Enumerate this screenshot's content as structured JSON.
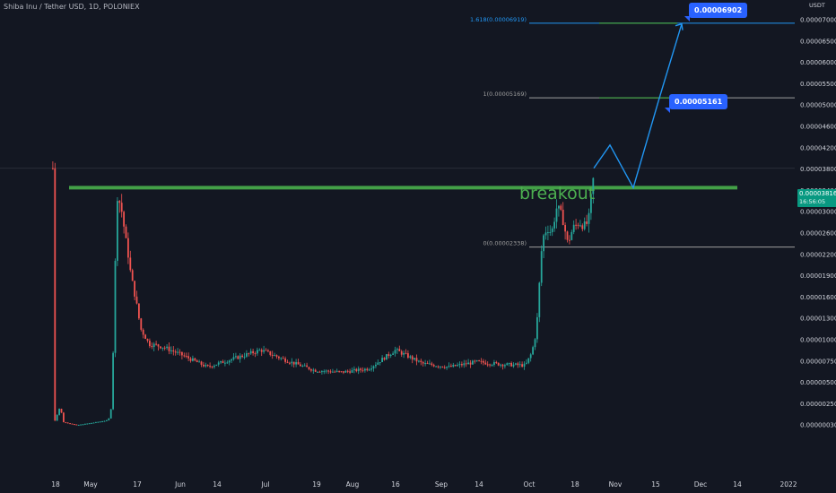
{
  "header": {
    "title": "Shiba Inu / Tether USD, 1D, POLONIEX",
    "unit": "USDT"
  },
  "price_badge": {
    "price": "0.00003816",
    "countdown": "16:56:05"
  },
  "annotations": {
    "breakout_label": "breakout",
    "target_1": "0.00005161",
    "target_2": "0.00006902"
  },
  "colors": {
    "background": "#131722",
    "up": "#26a69a",
    "down": "#ef5350",
    "resistance": "#43a047",
    "projection": "#2196f3",
    "tag": "#2962ff"
  },
  "chart_data": {
    "type": "candlestick",
    "title": "Shiba Inu / Tether USD, 1D, POLONIEX",
    "y_axis": {
      "unit": "USDT",
      "scale": "log",
      "ticks": [
        "0.00007000",
        "0.00006500",
        "0.00006000",
        "0.00005500",
        "0.00005000",
        "0.00004600",
        "0.00004200",
        "0.00003800",
        "0.00003400",
        "0.00003000",
        "0.00002600",
        "0.00002200",
        "0.00001900",
        "0.00001600",
        "0.00001300",
        "0.00001000",
        "0.00000750",
        "0.00000500",
        "0.00000250",
        "0.00000030"
      ]
    },
    "x_axis": {
      "ticks": [
        "18",
        "May",
        "17",
        "Jun",
        "14",
        "Jul",
        "19",
        "Aug",
        "16",
        "Sep",
        "14",
        "Oct",
        "18",
        "Nov",
        "15",
        "Dec",
        "14",
        "2022"
      ]
    },
    "resistance_level": 3.45e-05,
    "fibonacci": [
      {
        "label": "1.618(0.00006919)",
        "value": 6.919e-05
      },
      {
        "label": "1(0.00005169)",
        "value": 5.169e-05
      },
      {
        "label": "0(0.00002338)",
        "value": 2.338e-05
      }
    ],
    "projection_path": [
      "0.0000345 (breakout)",
      "0.0000425",
      "0.0000345",
      "0.00005161",
      "0.00006902"
    ],
    "last_price": 3.816e-05,
    "price_path_approx": [
      {
        "date": "Apr 14",
        "close": 4e-07
      },
      {
        "date": "Apr 25",
        "close": 3e-07
      },
      {
        "date": "May 9",
        "close": 1e-06
      },
      {
        "date": "May 11",
        "close": 3.5e-05
      },
      {
        "date": "May 15",
        "close": 1.8e-05
      },
      {
        "date": "May 20",
        "close": 9e-06
      },
      {
        "date": "Jun 1",
        "close": 8e-06
      },
      {
        "date": "Jul 1",
        "close": 7.5e-06
      },
      {
        "date": "Aug 1",
        "close": 6.5e-06
      },
      {
        "date": "Sep 1",
        "close": 7.2e-06
      },
      {
        "date": "Sep 30",
        "close": 7.8e-06
      },
      {
        "date": "Oct 4",
        "close": 1.85e-05
      },
      {
        "date": "Oct 6",
        "close": 2.7e-05
      },
      {
        "date": "Oct 10",
        "close": 2.75e-05
      },
      {
        "date": "Oct 20",
        "close": 2.8e-05
      },
      {
        "date": "Oct 24",
        "close": 3.816e-05
      }
    ]
  }
}
